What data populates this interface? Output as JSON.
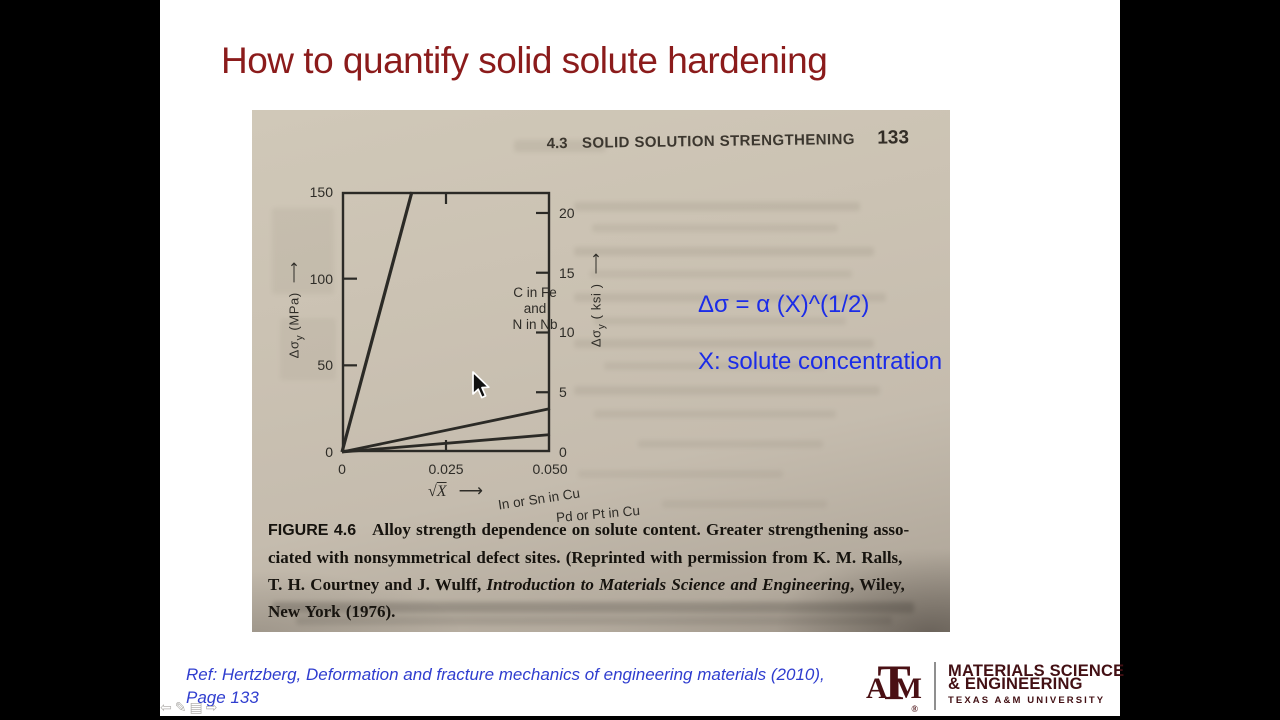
{
  "slide": {
    "title": "How to quantify solid solute hardening",
    "annotations": {
      "formula": "Δσ = α (X)^(1/2)",
      "variable_definition": "X: solute concentration"
    },
    "reference": {
      "line1": "Ref: Hertzberg, Deformation and fracture mechanics of engineering materials (2010),",
      "line2": "Page 133"
    }
  },
  "textbook_page": {
    "header": {
      "section_number": "4.3",
      "section_title": "SOLID SOLUTION STRENGTHENING",
      "page_number": "133"
    },
    "caption": {
      "label": "FIGURE 4.6",
      "line1": "Alloy strength dependence on solute content. Greater strengthening asso-",
      "line2": "ciated with nonsymmetrical defect sites. (Reprinted with permission from K. M. Ralls,",
      "line3_pre": "T. H. Courtney and J. Wulff, ",
      "line3_italic": "Introduction to Materials Science and Engineering",
      "line3_post": ", Wiley,",
      "line4": "New York (1976)."
    }
  },
  "chart_data": {
    "type": "line",
    "title": "",
    "xlabel": "√X",
    "xlabel_parts": [
      "√",
      "X"
    ],
    "ylabel_left": "Δσy (MPa)",
    "ylabel_left_parts": [
      "Δσ",
      "y",
      " (MPa)"
    ],
    "ylabel_right": "Δσy (ksi)",
    "ylabel_right_parts": [
      "Δσ",
      "y",
      " ( ksi )"
    ],
    "axis_arrow": "⟶",
    "xlim": [
      0,
      0.05
    ],
    "ylim_left_mpa": [
      0,
      150
    ],
    "right_axis_unit_to_mpa": 6.895,
    "x_ticks": [
      0,
      0.025,
      0.05
    ],
    "x_tick_labels": [
      "0",
      "0.025",
      "0.050"
    ],
    "y_ticks_left": [
      0,
      50,
      100,
      150
    ],
    "y_tick_labels_left": [
      "0",
      "50",
      "100",
      "150"
    ],
    "y_ticks_right": [
      0,
      5,
      10,
      15,
      20
    ],
    "y_tick_labels_right": [
      "0",
      "5",
      "10",
      "15",
      "20"
    ],
    "grid": false,
    "legend_position": "inline-labels",
    "series": [
      {
        "name": "C in Fe and N in Nb",
        "label_lines": [
          "C in Fe",
          "and",
          "N in Nb"
        ],
        "points_sqrtX_MPa": [
          [
            0,
            0
          ],
          [
            0.0168,
            150
          ]
        ],
        "note": "steep line, exits top of plot at ~√X=0.017"
      },
      {
        "name": "In or Sn in Cu",
        "points_sqrtX_MPa": [
          [
            0,
            0
          ],
          [
            0.05,
            25
          ]
        ]
      },
      {
        "name": "Pd or Pt in Cu",
        "points_sqrtX_MPa": [
          [
            0,
            0
          ],
          [
            0.05,
            10
          ]
        ]
      }
    ]
  },
  "footer": {
    "logo": {
      "letters": [
        "A",
        "T",
        "M"
      ],
      "registered": "®",
      "line1": "MATERIALS SCIENCE",
      "line2": "& ENGINEERING",
      "line3": "TEXAS A&M UNIVERSITY"
    },
    "nav_icons": [
      {
        "name": "previous-slide",
        "glyph": "⇦"
      },
      {
        "name": "pen-tool",
        "glyph": "✎"
      },
      {
        "name": "slide-menu",
        "glyph": "▤"
      },
      {
        "name": "next-slide",
        "glyph": "⇨"
      }
    ]
  },
  "colors": {
    "title_maroon": "#8b1b1b",
    "annotation_blue": "#1b2ce8",
    "reference_blue": "#2f3dcf",
    "tamu_maroon": "#4a1014",
    "page_tan": "#c9c0b1",
    "ink": "#2b2a26"
  }
}
